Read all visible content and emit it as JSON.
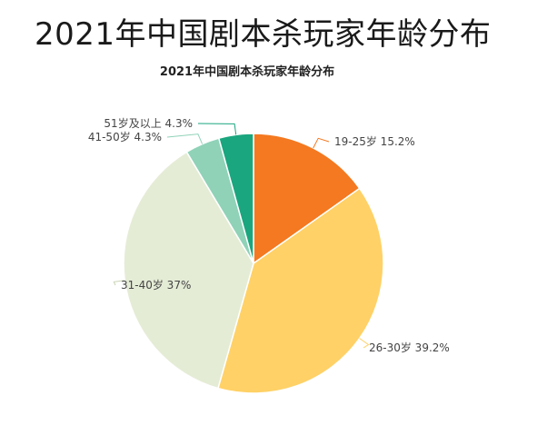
{
  "headline": "2021年中国剧本杀玩家年龄分布",
  "chart_data": {
    "type": "pie",
    "title": "2021年中国剧本杀玩家年龄分布",
    "unit": "%",
    "start_angle_deg": 90,
    "direction": "clockwise",
    "slices": [
      {
        "label": "19-25岁",
        "value": 15.2,
        "display": "19-25岁 15.2%",
        "color": "#f47920"
      },
      {
        "label": "26-30岁",
        "value": 39.2,
        "display": "26-30岁 39.2%",
        "color": "#ffd166"
      },
      {
        "label": "31-40岁",
        "value": 37,
        "display": "31-40岁 37%",
        "color": "#e5ecd6"
      },
      {
        "label": "41-50岁",
        "value": 4.3,
        "display": "41-50岁 4.3%",
        "color": "#8fd2b8"
      },
      {
        "label": "51岁及以上",
        "value": 4.3,
        "display": "51岁及以上 4.3%",
        "color": "#1aa67e"
      }
    ]
  }
}
